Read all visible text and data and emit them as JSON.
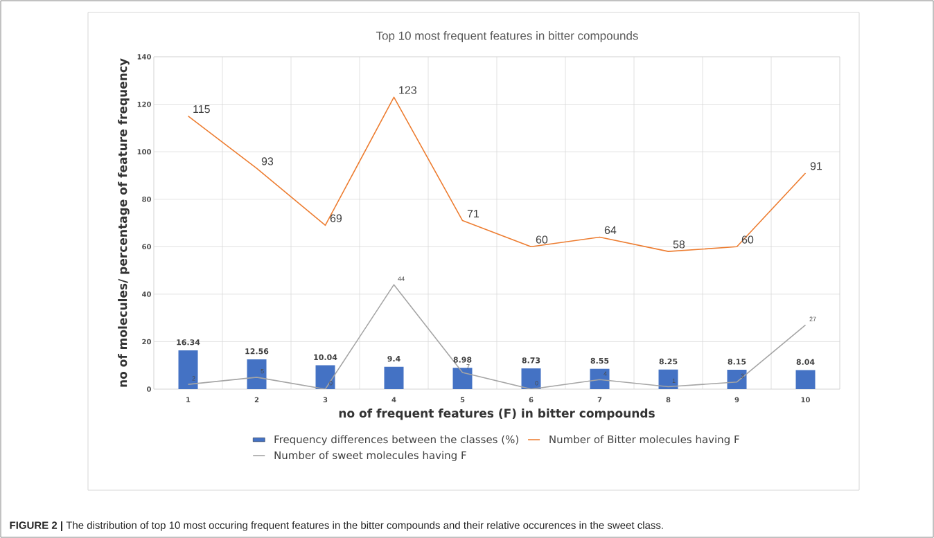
{
  "chart_data": {
    "type": "line",
    "title": "Top 10  most frequent features in bitter compounds",
    "xlabel": "no of frequent features (F) in bitter compounds",
    "ylabel": "no of molecules/ percentage of feature frequency",
    "categories": [
      "1",
      "2",
      "3",
      "4",
      "5",
      "6",
      "7",
      "8",
      "9",
      "10"
    ],
    "series": [
      {
        "name": "Frequency differences between the classes (%)",
        "type": "bar",
        "color": "#4472c4",
        "values": [
          16.34,
          12.56,
          10.04,
          9.4,
          8.98,
          8.73,
          8.55,
          8.25,
          8.15,
          8.04
        ]
      },
      {
        "name": "Number of Bitter molecules having F",
        "color": "#ed7d31",
        "values": [
          115,
          93,
          69,
          123,
          71,
          60,
          64,
          58,
          60,
          91
        ]
      },
      {
        "name": "Number of sweet molecules having F",
        "color": "#a5a5a5",
        "values": [
          2,
          5,
          0,
          44,
          7,
          0,
          4,
          1,
          3,
          27
        ]
      }
    ],
    "ylim": [
      0,
      140
    ],
    "yticks": [
      0,
      20,
      40,
      60,
      80,
      100,
      120,
      140
    ],
    "grid": true,
    "legend": "bottom",
    "data_labels": true,
    "marker": "none",
    "line_style": "solid",
    "annotations": [
      "**FIGURE 2 |** The distribution of top 10 most occuring frequent features in the bitter compounds and their relative occurences in the sweet class."
    ]
  }
}
